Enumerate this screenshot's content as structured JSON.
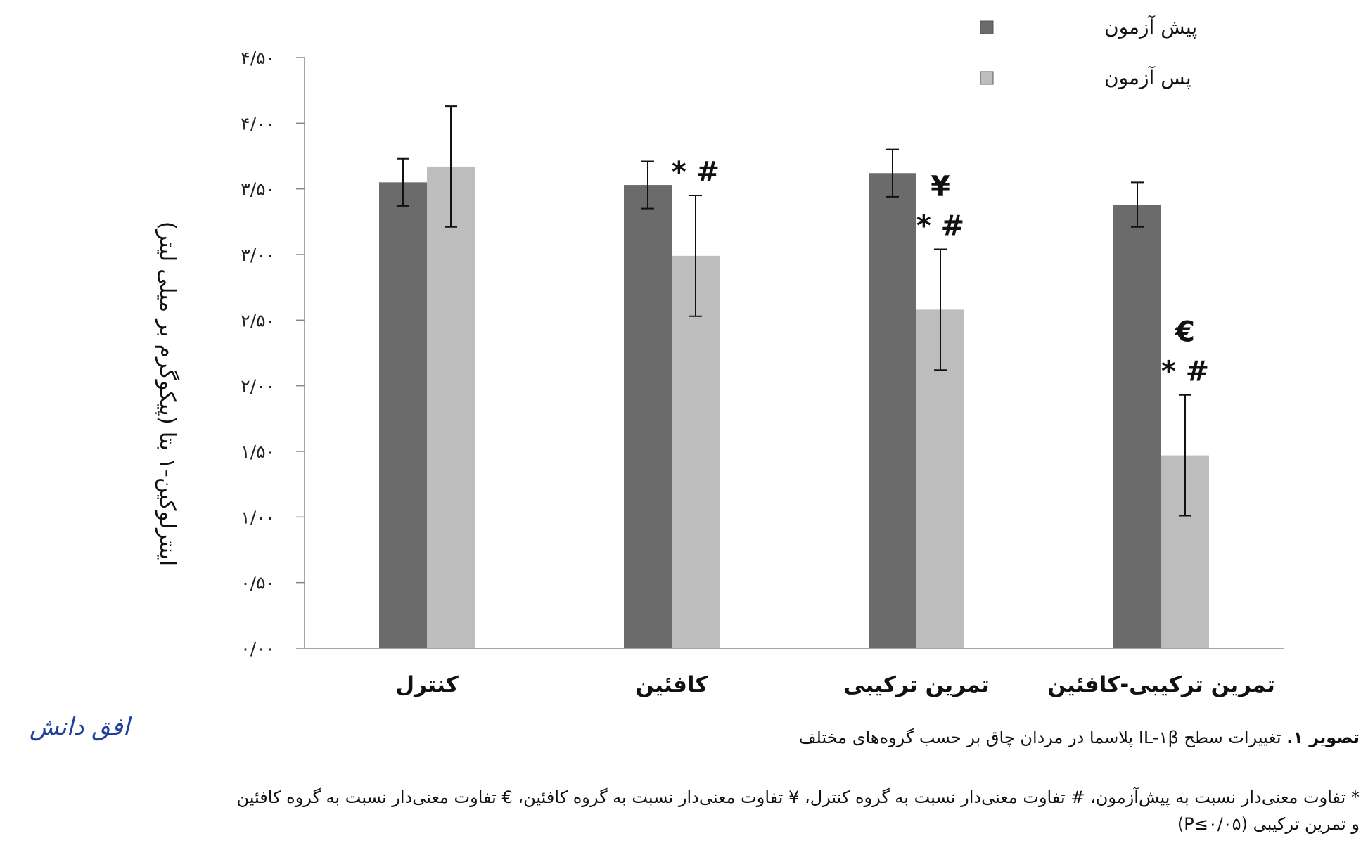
{
  "chart_data": {
    "type": "bar",
    "categories": [
      "کنترل",
      "کافئین",
      "تمرین  ترکیبی",
      "تمرین ترکیبی-کافئین"
    ],
    "series": [
      {
        "name": "پیش آزمون",
        "color": "#6b6b6b",
        "values": [
          3.55,
          3.53,
          3.62,
          3.38
        ],
        "errors": [
          0.18,
          0.18,
          0.18,
          0.17
        ]
      },
      {
        "name": "پس آزمون",
        "color": "#bdbdbd",
        "values": [
          3.67,
          2.99,
          2.58,
          1.47
        ],
        "errors": [
          0.46,
          0.46,
          0.46,
          0.46
        ]
      }
    ],
    "markers": [
      {
        "category": 1,
        "lines": [
          "* #"
        ]
      },
      {
        "category": 2,
        "lines": [
          "¥",
          "* #"
        ]
      },
      {
        "category": 3,
        "lines": [
          "€",
          "* #"
        ]
      }
    ],
    "ylabel": "اینترلوکین-۱ بتا (پیکوگرم بر میلی لیتر)",
    "xlabel": "",
    "ylim": [
      0,
      4.5
    ],
    "yticks": [
      0,
      0.5,
      1,
      1.5,
      2,
      2.5,
      3,
      3.5,
      4,
      4.5
    ],
    "ytick_labels": [
      "۰/۰۰",
      "۰/۵۰",
      "۱/۰۰",
      "۱/۵۰",
      "۲/۰۰",
      "۲/۵۰",
      "۳/۰۰",
      "۳/۵۰",
      "۴/۰۰",
      "۴/۵۰"
    ],
    "legend_position": "top-right",
    "grid": false
  },
  "logo": {
    "text": "افق دانش"
  },
  "caption": {
    "label": "تصویر ۱.",
    "text": "تغییرات سطح IL-۱β پلاسما در مردان چاق بر حسب گروه‌های مختلف"
  },
  "notes": {
    "line1": "* تفاوت معنی‌دار نسبت به پیش‌آزمون، # تفاوت معنی‌دار نسبت به گروه کنترل، ¥ تفاوت معنی‌دار نسبت به گروه کافئین، € تفاوت معنی‌دار نسبت به گروه کافئین",
    "line2": "و تمرین ترکیبی (P≤۰/۰۵)"
  }
}
